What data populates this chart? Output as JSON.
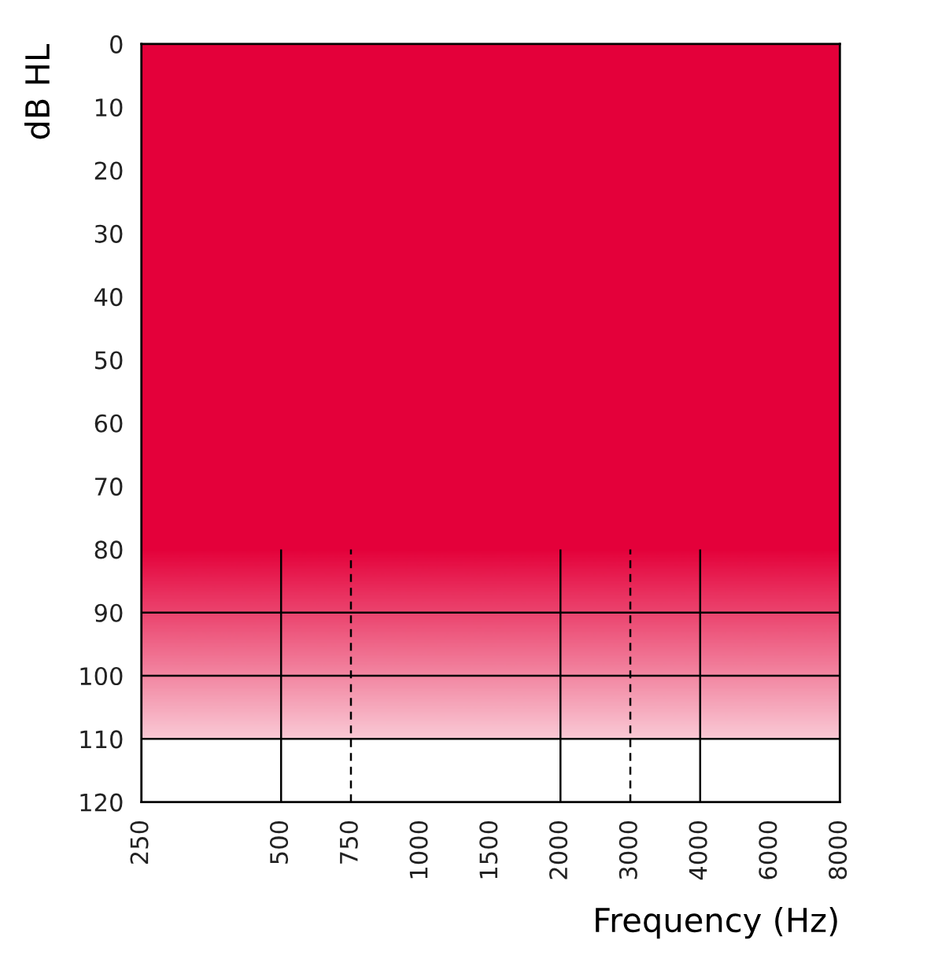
{
  "chart_data": {
    "type": "area",
    "xlabel": "Frequency (Hz)",
    "ylabel": "dB HL",
    "categories": [
      "250",
      null,
      "500",
      "750",
      "1000",
      "1500",
      "2000",
      "3000",
      "4000",
      "6000",
      "8000"
    ],
    "series": [
      {
        "color": "#e4003a",
        "values": [
          80,
          80,
          80,
          80,
          80,
          80,
          80,
          80,
          80,
          80,
          80
        ]
      }
    ],
    "ylim": [
      120,
      0
    ],
    "yticks": [
      0,
      10,
      20,
      30,
      40,
      50,
      60,
      70,
      80,
      90,
      100,
      110,
      120
    ],
    "bands": [
      {
        "axis": "y",
        "from": 80,
        "to": 110,
        "color": "#e4003a"
      }
    ],
    "ref_lines": [
      {
        "axis": "x",
        "value": "500",
        "line_style": "solid"
      },
      {
        "axis": "x",
        "value": "750",
        "line_style": "dashed"
      },
      {
        "axis": "x",
        "value": "2000",
        "line_style": "solid"
      },
      {
        "axis": "x",
        "value": "3000",
        "line_style": "dashed"
      },
      {
        "axis": "x",
        "value": "4000",
        "line_style": "solid"
      },
      {
        "axis": "y",
        "value": 90,
        "line_style": "solid"
      },
      {
        "axis": "y",
        "value": 100,
        "line_style": "solid"
      },
      {
        "axis": "y",
        "value": 110,
        "line_style": "solid"
      }
    ],
    "grid": false,
    "legend": false
  }
}
